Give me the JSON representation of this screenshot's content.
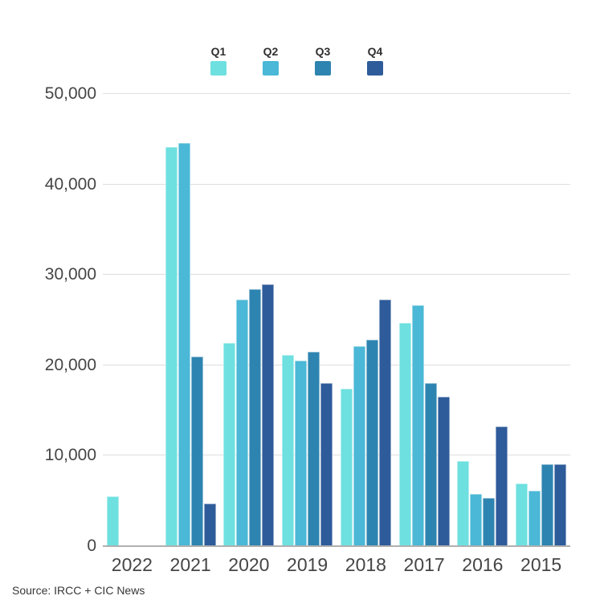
{
  "source": {
    "text": "Source: IRCC + CIC News"
  },
  "colors": {
    "q1": "#6EE0E0",
    "q2": "#4AB8D6",
    "q3": "#2E84B0",
    "q4": "#2E5B9A",
    "gridline": "#dedede",
    "baseline": "#b0b0b0",
    "axis_text": "#454545"
  },
  "chart_data": {
    "type": "bar",
    "title": "",
    "xlabel": "",
    "ylabel": "",
    "grid": "horizontal",
    "legend_position": "top",
    "ylim": [
      0,
      50000
    ],
    "yticks": [
      {
        "value": 0,
        "label": "0"
      },
      {
        "value": 10000,
        "label": "10,000"
      },
      {
        "value": 20000,
        "label": "20,000"
      },
      {
        "value": 30000,
        "label": "30,000"
      },
      {
        "value": 40000,
        "label": "40,000"
      },
      {
        "value": 50000,
        "label": "50,000"
      }
    ],
    "categories": [
      "2022",
      "2021",
      "2020",
      "2019",
      "2018",
      "2017",
      "2016",
      "2015"
    ],
    "series": [
      {
        "name": "Q1",
        "color": "#6EE0E0",
        "values": [
          5500,
          44100,
          22500,
          21100,
          17400,
          24700,
          9450,
          6900
        ]
      },
      {
        "name": "Q2",
        "color": "#4AB8D6",
        "values": [
          null,
          44600,
          27300,
          20500,
          22100,
          26600,
          5800,
          6100
        ]
      },
      {
        "name": "Q3",
        "color": "#2E84B0",
        "values": [
          null,
          21000,
          28400,
          21500,
          22800,
          18000,
          5300,
          9100
        ]
      },
      {
        "name": "Q4",
        "color": "#2E5B9A",
        "values": [
          null,
          4700,
          28950,
          18000,
          27300,
          16550,
          13200,
          9050
        ]
      }
    ]
  }
}
